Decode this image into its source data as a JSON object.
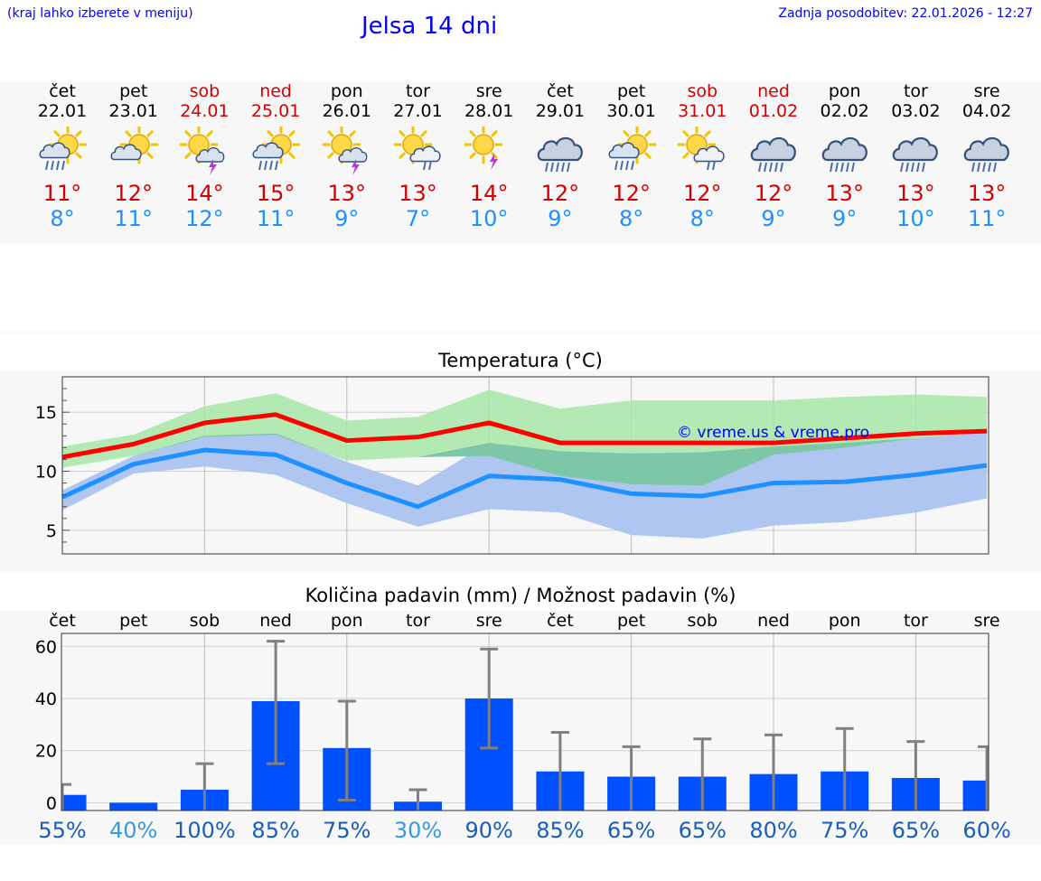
{
  "header": {
    "location_hint": "(kraj lahko izberete v meniju)",
    "title": "Jelsa 14 dni",
    "updated": "Zadnja posodobitev: 22.01.2026 - 12:27"
  },
  "days": [
    {
      "name": "čet",
      "date": "22.01",
      "icon": "sun-cloud-rain-icon",
      "tmax": "11°",
      "tmin": "8°",
      "weekend": false
    },
    {
      "name": "pet",
      "date": "23.01",
      "icon": "sun-cloud-icon",
      "tmax": "12°",
      "tmin": "11°",
      "weekend": false
    },
    {
      "name": "sob",
      "date": "24.01",
      "icon": "sun-cloud-storm-icon",
      "tmax": "14°",
      "tmin": "12°",
      "weekend": true
    },
    {
      "name": "ned",
      "date": "25.01",
      "icon": "sun-cloud-rain-icon",
      "tmax": "15°",
      "tmin": "11°",
      "weekend": true
    },
    {
      "name": "pon",
      "date": "26.01",
      "icon": "sun-cloud-storm-icon",
      "tmax": "13°",
      "tmin": "9°",
      "weekend": false
    },
    {
      "name": "tor",
      "date": "27.01",
      "icon": "sun-cloud-drizzle-icon",
      "tmax": "13°",
      "tmin": "7°",
      "weekend": false
    },
    {
      "name": "sre",
      "date": "28.01",
      "icon": "sun-storm-icon",
      "tmax": "14°",
      "tmin": "10°",
      "weekend": false
    },
    {
      "name": "čet",
      "date": "29.01",
      "icon": "cloud-rain-icon",
      "tmax": "12°",
      "tmin": "9°",
      "weekend": false
    },
    {
      "name": "pet",
      "date": "30.01",
      "icon": "sun-cloud-rain-icon",
      "tmax": "12°",
      "tmin": "8°",
      "weekend": false
    },
    {
      "name": "sob",
      "date": "31.01",
      "icon": "sun-cloud-drizzle-icon",
      "tmax": "12°",
      "tmin": "8°",
      "weekend": true
    },
    {
      "name": "ned",
      "date": "01.02",
      "icon": "cloud-rain-icon",
      "tmax": "12°",
      "tmin": "9°",
      "weekend": true
    },
    {
      "name": "pon",
      "date": "02.02",
      "icon": "cloud-rain-icon",
      "tmax": "13°",
      "tmin": "9°",
      "weekend": false
    },
    {
      "name": "tor",
      "date": "03.02",
      "icon": "cloud-rain-icon",
      "tmax": "13°",
      "tmin": "10°",
      "weekend": false
    },
    {
      "name": "sre",
      "date": "04.02",
      "icon": "cloud-rain-icon",
      "tmax": "13°",
      "tmin": "11°",
      "weekend": false
    }
  ],
  "colors": {
    "max": "#ff0000",
    "min": "#1e90ff",
    "max_band": "#a7e6a7",
    "min_band": "#aec6f0",
    "overlap_band": "#7dc6a8",
    "bar": "#0050ff",
    "whisker": "#808080",
    "prob_high": "#1a5fb4",
    "prob_low": "#3a9ad9",
    "weekend": "#d20000",
    "link": "#0000ff"
  },
  "chart_data": [
    {
      "type": "line",
      "title": "Temperatura (°C)",
      "watermark": "© vreme.us & vreme.pro",
      "x_count": 14,
      "ylim": [
        3,
        18
      ],
      "yticks": [
        5,
        10,
        15
      ],
      "series": [
        {
          "name": "max",
          "values": [
            11.2,
            12.3,
            14.1,
            14.8,
            12.6,
            12.9,
            14.1,
            12.4,
            12.4,
            12.4,
            12.4,
            12.8,
            13.2,
            13.4
          ]
        },
        {
          "name": "min",
          "values": [
            7.8,
            10.6,
            11.8,
            11.4,
            9.0,
            7.0,
            9.6,
            9.3,
            8.1,
            7.9,
            9.0,
            9.1,
            9.7,
            10.5
          ]
        },
        {
          "name": "max_high",
          "values": [
            12.1,
            13.1,
            15.5,
            16.6,
            14.3,
            14.6,
            16.9,
            15.3,
            16.0,
            16.0,
            16.0,
            16.3,
            16.5,
            16.3
          ]
        },
        {
          "name": "max_low",
          "values": [
            10.3,
            11.3,
            12.9,
            13.1,
            10.9,
            11.2,
            11.3,
            9.6,
            8.9,
            8.8,
            11.4,
            12.0,
            12.8,
            13.3
          ]
        },
        {
          "name": "min_high",
          "values": [
            8.4,
            11.3,
            13.0,
            13.2,
            10.8,
            8.8,
            12.4,
            11.7,
            11.5,
            11.6,
            12.1,
            12.4,
            12.8,
            13.3
          ]
        },
        {
          "name": "min_low",
          "values": [
            6.7,
            9.8,
            10.4,
            9.7,
            7.3,
            5.3,
            6.8,
            6.5,
            4.6,
            4.3,
            5.4,
            5.7,
            6.5,
            7.7
          ]
        }
      ]
    },
    {
      "type": "bar",
      "title": "Količina padavin (mm) / Možnost padavin (%)",
      "categories": [
        "čet",
        "pet",
        "sob",
        "ned",
        "pon",
        "tor",
        "sre",
        "čet",
        "pet",
        "sob",
        "ned",
        "pon",
        "tor",
        "sre"
      ],
      "ylim": [
        -3,
        65
      ],
      "yticks": [
        0,
        20,
        40,
        60
      ],
      "values": [
        3,
        0,
        5,
        39,
        21,
        0.4,
        40,
        12,
        10,
        10,
        11,
        12,
        9.5,
        8.5
      ],
      "error_high": [
        7,
        0,
        15,
        62,
        39,
        5,
        59,
        27,
        21.5,
        24.5,
        26,
        28.5,
        23.5,
        21.5
      ],
      "error_low": [
        0,
        0,
        0,
        15,
        1,
        0,
        21,
        0,
        0,
        0,
        0,
        0,
        0,
        0
      ],
      "probabilities": [
        "55%",
        "40%",
        "100%",
        "85%",
        "75%",
        "30%",
        "90%",
        "85%",
        "65%",
        "65%",
        "80%",
        "75%",
        "65%",
        "60%"
      ]
    }
  ]
}
